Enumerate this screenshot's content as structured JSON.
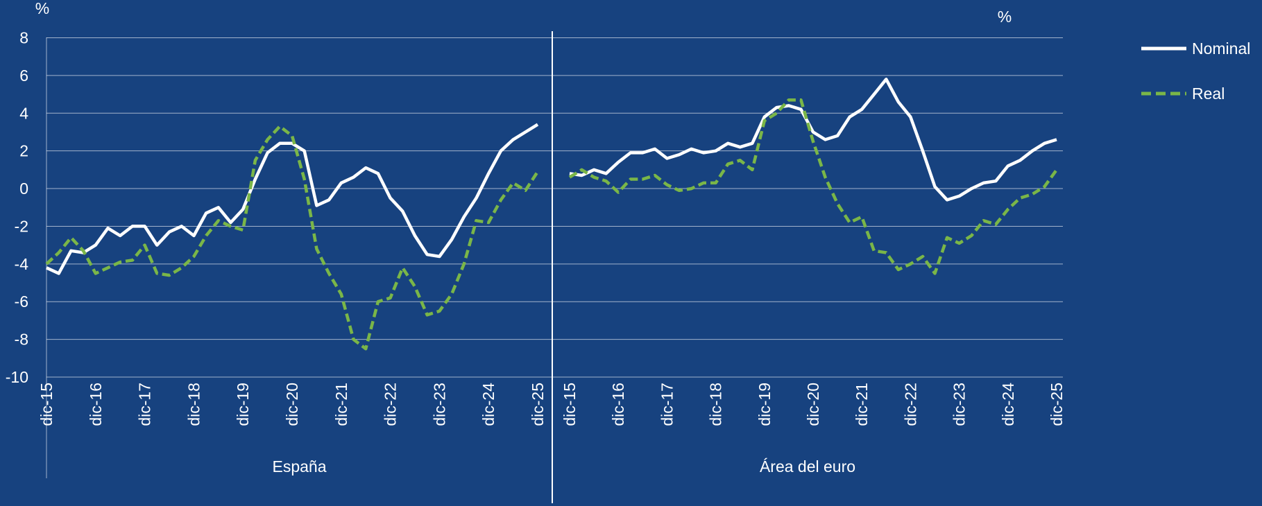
{
  "chart_data": [
    {
      "type": "line",
      "xlabel": "España",
      "ylabel": "%",
      "categories": [
        "dic-15",
        null,
        null,
        null,
        "dic-16",
        null,
        null,
        null,
        "dic-17",
        null,
        null,
        null,
        "dic-18",
        null,
        null,
        null,
        "dic-19",
        null,
        null,
        null,
        "dic-20",
        null,
        null,
        null,
        "dic-21",
        null,
        null,
        null,
        "dic-22",
        null,
        null,
        null,
        "dic-23",
        null,
        null,
        null,
        "dic-24",
        null,
        null,
        null,
        "dic-25"
      ],
      "series": [
        {
          "name": "Nominal",
          "color": "#ffffff",
          "dash": false,
          "values": [
            -4.2,
            -4.5,
            -3.3,
            -3.4,
            -3.0,
            -2.1,
            -2.5,
            -2.0,
            -2.0,
            -3.0,
            -2.3,
            -2.0,
            -2.5,
            -1.3,
            -1.0,
            -1.8,
            -1.1,
            0.5,
            1.9,
            2.4,
            2.4,
            2.0,
            -0.9,
            -0.6,
            0.3,
            0.6,
            1.1,
            0.8,
            -0.5,
            -1.2,
            -2.5,
            -3.5,
            -3.6,
            -2.7,
            -1.5,
            -0.5,
            0.8,
            2.0,
            2.6,
            3.0,
            3.4
          ]
        },
        {
          "name": "Real",
          "color": "#7ab648",
          "dash": true,
          "values": [
            -4.0,
            -3.4,
            -2.6,
            -3.3,
            -4.5,
            -4.2,
            -3.9,
            -3.8,
            -3.0,
            -4.5,
            -4.6,
            -4.2,
            -3.6,
            -2.5,
            -1.7,
            -2.0,
            -2.2,
            1.5,
            2.6,
            3.3,
            2.8,
            0.5,
            -3.2,
            -4.5,
            -5.6,
            -8.0,
            -8.5,
            -6.0,
            -5.8,
            -4.2,
            -5.2,
            -6.7,
            -6.5,
            -5.6,
            -4.0,
            -1.7,
            -1.8,
            -0.6,
            0.3,
            -0.1,
            0.9
          ]
        }
      ],
      "ylim": [
        -10,
        8
      ],
      "yticks": [
        -10,
        -8,
        -6,
        -4,
        -2,
        0,
        2,
        4,
        6,
        8
      ],
      "grid": true
    },
    {
      "type": "line",
      "xlabel": "Área del euro",
      "ylabel": "%",
      "categories": [
        "dic-15",
        null,
        null,
        null,
        "dic-16",
        null,
        null,
        null,
        "dic-17",
        null,
        null,
        null,
        "dic-18",
        null,
        null,
        null,
        "dic-19",
        null,
        null,
        null,
        "dic-20",
        null,
        null,
        null,
        "dic-21",
        null,
        null,
        null,
        "dic-22",
        null,
        null,
        null,
        "dic-23",
        null,
        null,
        null,
        "dic-24",
        null,
        null,
        null,
        "dic-25"
      ],
      "series": [
        {
          "color": "#ffffff",
          "dash": false,
          "values": [
            0.8,
            0.7,
            1.0,
            0.8,
            1.4,
            1.9,
            1.9,
            2.1,
            1.6,
            1.8,
            2.1,
            1.9,
            2.0,
            2.4,
            2.2,
            2.4,
            3.8,
            4.3,
            4.4,
            4.2,
            3.0,
            2.6,
            2.8,
            3.8,
            4.2,
            5.0,
            5.8,
            4.6,
            3.8,
            2.0,
            0.1,
            -0.6,
            -0.4,
            0.0,
            0.3,
            0.4,
            1.2,
            1.5,
            2.0,
            2.4,
            2.6
          ]
        },
        {
          "color": "#7ab648",
          "dash": true,
          "values": [
            0.6,
            1.0,
            0.6,
            0.4,
            -0.2,
            0.5,
            0.5,
            0.7,
            0.2,
            -0.1,
            0.0,
            0.3,
            0.3,
            1.3,
            1.5,
            1.0,
            3.6,
            4.0,
            4.7,
            4.7,
            2.5,
            0.6,
            -0.8,
            -1.8,
            -1.5,
            -3.3,
            -3.4,
            -4.3,
            -4.0,
            -3.6,
            -4.5,
            -2.6,
            -2.9,
            -2.5,
            -1.7,
            -1.9,
            -1.1,
            -0.5,
            -0.3,
            0.1,
            1.0
          ]
        }
      ],
      "ylim": [
        -10,
        8
      ],
      "yticks": [
        -10,
        -8,
        -6,
        -4,
        -2,
        0,
        2,
        4,
        6,
        8
      ],
      "grid": true
    }
  ]
}
